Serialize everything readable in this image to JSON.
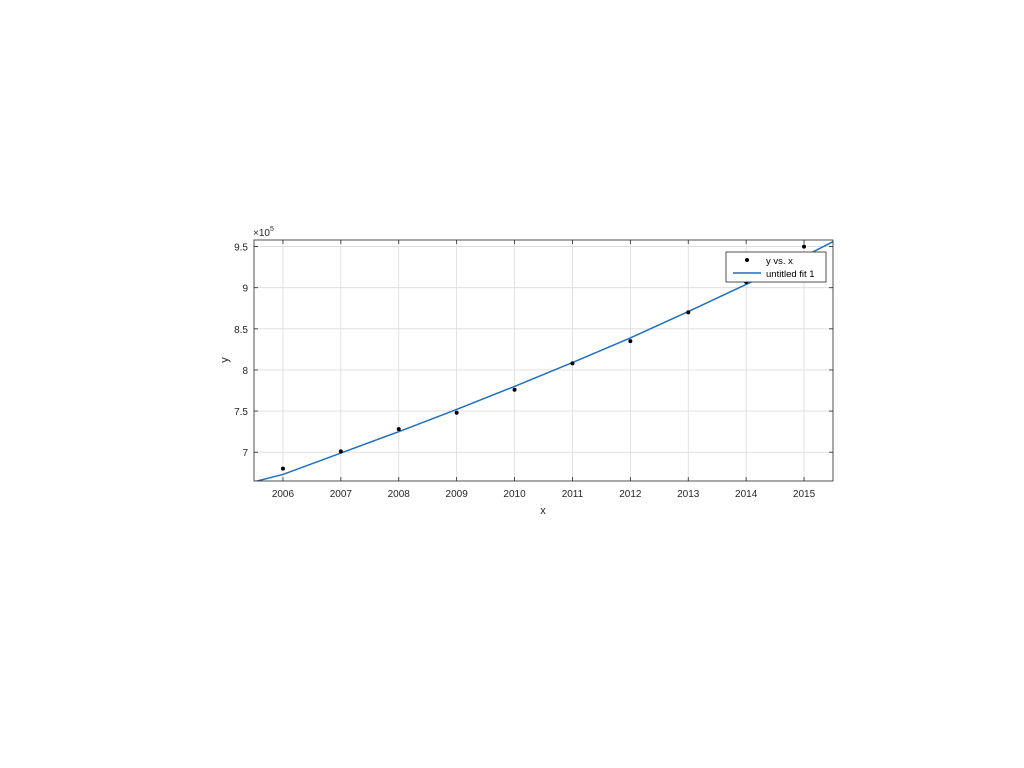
{
  "chart_data": {
    "type": "scatter",
    "title": "",
    "xlabel": "x",
    "ylabel": "y",
    "y_exponent_label": "×10",
    "y_exponent_power": "5",
    "y_scale_factor": 100000,
    "xlim": [
      2005.5,
      2015.5
    ],
    "ylim": [
      6.65,
      9.58
    ],
    "x_ticks": [
      2006,
      2007,
      2008,
      2009,
      2010,
      2011,
      2012,
      2013,
      2014,
      2015
    ],
    "y_ticks": [
      7,
      7.5,
      8,
      8.5,
      9,
      9.5
    ],
    "x_tick_labels": [
      "2006",
      "2007",
      "2008",
      "2009",
      "2010",
      "2011",
      "2012",
      "2013",
      "2014",
      "2015"
    ],
    "y_tick_labels": [
      "7",
      "7.5",
      "8",
      "8.5",
      "9",
      "9.5"
    ],
    "grid": true,
    "legend_position": "top-right",
    "series": [
      {
        "name": "y vs. x",
        "kind": "points",
        "color": "#000000",
        "x": [
          2006,
          2007,
          2008,
          2009,
          2010,
          2011,
          2012,
          2013,
          2014,
          2015
        ],
        "y": [
          6.8,
          7.01,
          7.28,
          7.48,
          7.76,
          8.08,
          8.35,
          8.7,
          9.07,
          9.5
        ]
      },
      {
        "name": "untitled fit 1",
        "kind": "fit_line",
        "color": "#1f6fbf",
        "x": [
          2005.5,
          2006,
          2007,
          2008,
          2009,
          2010,
          2011,
          2012,
          2013,
          2014,
          2015,
          2015.5
        ],
        "y": [
          6.64,
          6.73,
          6.99,
          7.25,
          7.52,
          7.8,
          8.09,
          8.39,
          8.71,
          9.04,
          9.38,
          9.56
        ]
      }
    ]
  }
}
